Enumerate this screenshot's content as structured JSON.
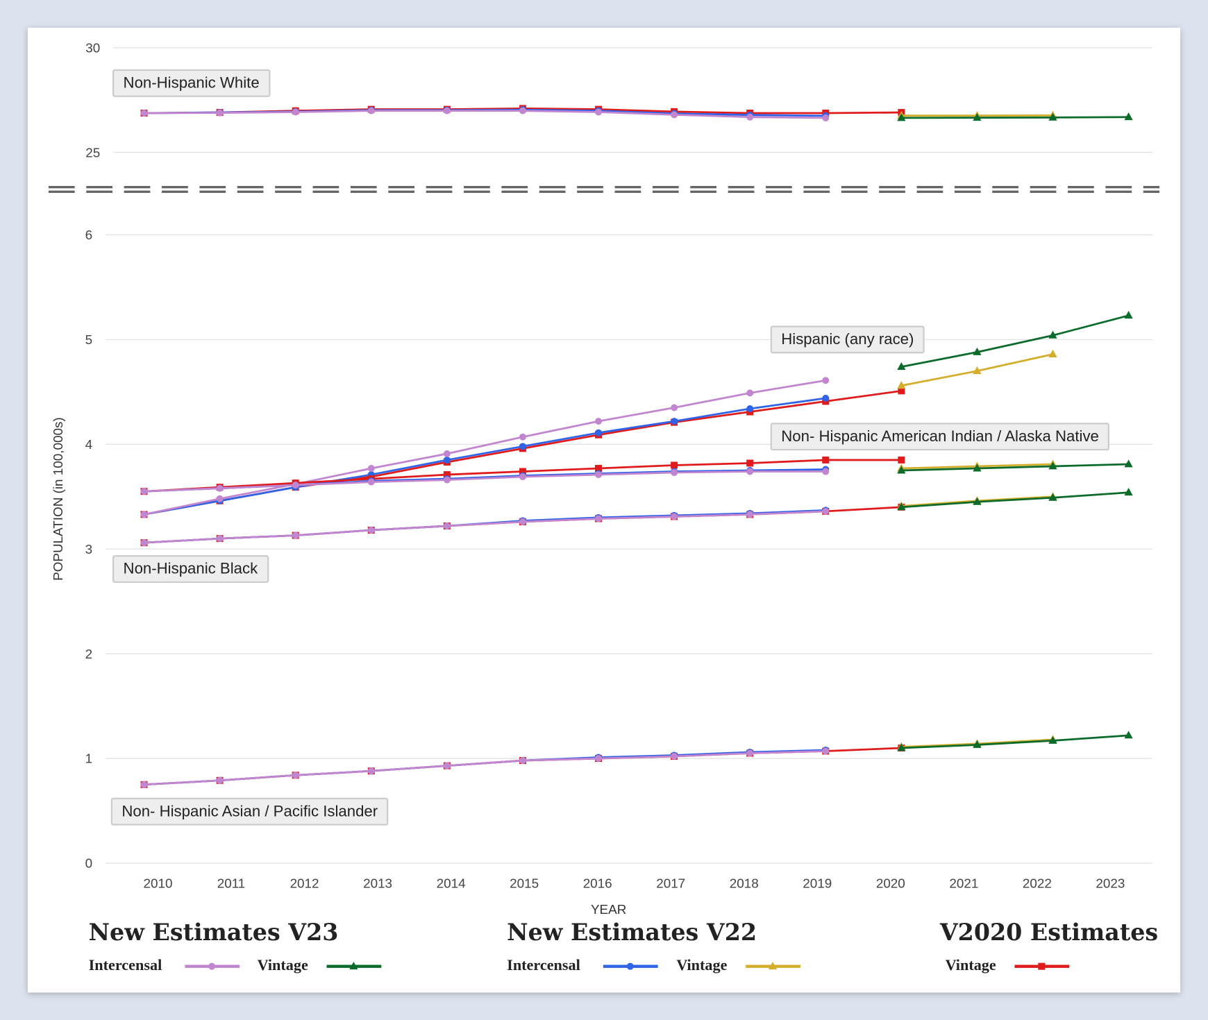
{
  "chart_data": {
    "type": "line",
    "xlabel": "YEAR",
    "ylabel": "POPULATION (in 100,000s)",
    "x_ticks": [
      "2010",
      "2011",
      "2012",
      "2013",
      "2014",
      "2015",
      "2016",
      "2017",
      "2018",
      "2019",
      "2020",
      "2021",
      "2022",
      "2023"
    ],
    "y_ticks_lower": [
      "0",
      "1",
      "2",
      "3",
      "4",
      "5",
      "6"
    ],
    "y_ticks_upper": [
      "25",
      "30"
    ],
    "ylim_lower": [
      0,
      6
    ],
    "ylim_upper": [
      25,
      30
    ],
    "axis_break": true,
    "grid": "horizontal",
    "legend_placement": "bottom",
    "styles": {
      "v23_intercensal": {
        "color": "#c186cf",
        "marker": "circle"
      },
      "v23_vintage": {
        "color": "#0a6b2a",
        "marker": "triangle"
      },
      "v22_intercensal": {
        "color": "#2f63e8",
        "marker": "circle"
      },
      "v22_vintage": {
        "color": "#d4ae2a",
        "marker": "triangle"
      },
      "v2020_vintage": {
        "color": "#e01b1b",
        "marker": "square"
      }
    },
    "groups": [
      {
        "label": "Non-Hispanic White",
        "panel": "upper",
        "series": [
          {
            "key": "v2020_vintage",
            "x": [
              2010,
              2011,
              2012,
              2013,
              2014,
              2015,
              2016,
              2017,
              2018,
              2019,
              2020
            ],
            "y": [
              26.88,
              26.91,
              26.99,
              27.06,
              27.06,
              27.1,
              27.06,
              26.95,
              26.88,
              26.88,
              26.91
            ]
          },
          {
            "key": "v22_intercensal",
            "x": [
              2010,
              2011,
              2012,
              2013,
              2014,
              2015,
              2016,
              2017,
              2018,
              2019
            ],
            "y": [
              26.88,
              26.91,
              26.95,
              27.02,
              27.02,
              27.04,
              26.99,
              26.86,
              26.79,
              26.75
            ]
          },
          {
            "key": "v23_intercensal",
            "x": [
              2010,
              2011,
              2012,
              2013,
              2014,
              2015,
              2016,
              2017,
              2018,
              2019
            ],
            "y": [
              26.88,
              26.89,
              26.93,
              26.99,
              26.99,
              26.99,
              26.93,
              26.8,
              26.69,
              26.65
            ]
          },
          {
            "key": "v22_vintage",
            "x": [
              2020,
              2021,
              2022
            ],
            "y": [
              26.76,
              26.76,
              26.77
            ]
          },
          {
            "key": "v23_vintage",
            "x": [
              2020,
              2021,
              2022,
              2023
            ],
            "y": [
              26.65,
              26.66,
              26.67,
              26.69
            ]
          }
        ]
      },
      {
        "label": "Hispanic (any race)",
        "panel": "lower",
        "series": [
          {
            "key": "v2020_vintage",
            "x": [
              2010,
              2011,
              2012,
              2013,
              2014,
              2015,
              2016,
              2017,
              2018,
              2019,
              2020
            ],
            "y": [
              3.33,
              3.46,
              3.59,
              3.69,
              3.83,
              3.96,
              4.09,
              4.21,
              4.31,
              4.41,
              4.51
            ]
          },
          {
            "key": "v22_intercensal",
            "x": [
              2010,
              2011,
              2012,
              2013,
              2014,
              2015,
              2016,
              2017,
              2018,
              2019
            ],
            "y": [
              3.33,
              3.46,
              3.59,
              3.71,
              3.85,
              3.98,
              4.11,
              4.22,
              4.34,
              4.44
            ]
          },
          {
            "key": "v23_intercensal",
            "x": [
              2010,
              2011,
              2012,
              2013,
              2014,
              2015,
              2016,
              2017,
              2018,
              2019
            ],
            "y": [
              3.33,
              3.48,
              3.62,
              3.77,
              3.91,
              4.07,
              4.22,
              4.35,
              4.49,
              4.61
            ]
          },
          {
            "key": "v22_vintage",
            "x": [
              2020,
              2021,
              2022
            ],
            "y": [
              4.56,
              4.7,
              4.86
            ]
          },
          {
            "key": "v23_vintage",
            "x": [
              2020,
              2021,
              2022,
              2023
            ],
            "y": [
              4.74,
              4.88,
              5.04,
              5.23
            ]
          }
        ]
      },
      {
        "label": "Non- Hispanic American Indian / Alaska Native",
        "panel": "lower",
        "series": [
          {
            "key": "v2020_vintage",
            "x": [
              2010,
              2011,
              2012,
              2013,
              2014,
              2015,
              2016,
              2017,
              2018,
              2019,
              2020
            ],
            "y": [
              3.55,
              3.59,
              3.63,
              3.67,
              3.71,
              3.74,
              3.77,
              3.8,
              3.82,
              3.85,
              3.85
            ]
          },
          {
            "key": "v22_intercensal",
            "x": [
              2010,
              2011,
              2012,
              2013,
              2014,
              2015,
              2016,
              2017,
              2018,
              2019
            ],
            "y": [
              3.55,
              3.58,
              3.61,
              3.65,
              3.67,
              3.7,
              3.72,
              3.74,
              3.75,
              3.76
            ]
          },
          {
            "key": "v23_intercensal",
            "x": [
              2010,
              2011,
              2012,
              2013,
              2014,
              2015,
              2016,
              2017,
              2018,
              2019
            ],
            "y": [
              3.55,
              3.58,
              3.61,
              3.64,
              3.66,
              3.69,
              3.71,
              3.73,
              3.74,
              3.74
            ]
          },
          {
            "key": "v22_vintage",
            "x": [
              2020,
              2021,
              2022
            ],
            "y": [
              3.77,
              3.79,
              3.81
            ]
          },
          {
            "key": "v23_vintage",
            "x": [
              2020,
              2021,
              2022,
              2023
            ],
            "y": [
              3.75,
              3.77,
              3.79,
              3.81
            ]
          }
        ]
      },
      {
        "label": "Non-Hispanic Black",
        "panel": "lower",
        "series": [
          {
            "key": "v2020_vintage",
            "x": [
              2010,
              2011,
              2012,
              2013,
              2014,
              2015,
              2016,
              2017,
              2018,
              2019,
              2020
            ],
            "y": [
              3.06,
              3.1,
              3.13,
              3.18,
              3.22,
              3.26,
              3.29,
              3.31,
              3.33,
              3.36,
              3.4
            ]
          },
          {
            "key": "v22_intercensal",
            "x": [
              2010,
              2011,
              2012,
              2013,
              2014,
              2015,
              2016,
              2017,
              2018,
              2019
            ],
            "y": [
              3.06,
              3.1,
              3.13,
              3.18,
              3.22,
              3.27,
              3.3,
              3.32,
              3.34,
              3.37
            ]
          },
          {
            "key": "v23_intercensal",
            "x": [
              2010,
              2011,
              2012,
              2013,
              2014,
              2015,
              2016,
              2017,
              2018,
              2019
            ],
            "y": [
              3.06,
              3.1,
              3.13,
              3.18,
              3.22,
              3.26,
              3.29,
              3.31,
              3.33,
              3.36
            ]
          },
          {
            "key": "v22_vintage",
            "x": [
              2020,
              2021,
              2022
            ],
            "y": [
              3.41,
              3.46,
              3.5
            ]
          },
          {
            "key": "v23_vintage",
            "x": [
              2020,
              2021,
              2022,
              2023
            ],
            "y": [
              3.4,
              3.45,
              3.49,
              3.54
            ]
          }
        ]
      },
      {
        "label": "Non- Hispanic Asian / Pacific Islander",
        "panel": "lower",
        "series": [
          {
            "key": "v2020_vintage",
            "x": [
              2010,
              2011,
              2012,
              2013,
              2014,
              2015,
              2016,
              2017,
              2018,
              2019,
              2020
            ],
            "y": [
              0.75,
              0.79,
              0.84,
              0.88,
              0.93,
              0.98,
              1.0,
              1.02,
              1.05,
              1.07,
              1.1
            ]
          },
          {
            "key": "v22_intercensal",
            "x": [
              2010,
              2011,
              2012,
              2013,
              2014,
              2015,
              2016,
              2017,
              2018,
              2019
            ],
            "y": [
              0.75,
              0.79,
              0.84,
              0.88,
              0.93,
              0.98,
              1.01,
              1.03,
              1.06,
              1.08
            ]
          },
          {
            "key": "v23_intercensal",
            "x": [
              2010,
              2011,
              2012,
              2013,
              2014,
              2015,
              2016,
              2017,
              2018,
              2019
            ],
            "y": [
              0.75,
              0.79,
              0.84,
              0.88,
              0.93,
              0.98,
              1.0,
              1.02,
              1.05,
              1.07
            ]
          },
          {
            "key": "v22_vintage",
            "x": [
              2020,
              2021,
              2022
            ],
            "y": [
              1.11,
              1.14,
              1.18
            ]
          },
          {
            "key": "v23_vintage",
            "x": [
              2020,
              2021,
              2022,
              2023
            ],
            "y": [
              1.1,
              1.13,
              1.17,
              1.22
            ]
          }
        ]
      }
    ],
    "legend": [
      {
        "title": "New Estimates V23",
        "items": [
          {
            "label": "Intercensal",
            "key": "v23_intercensal"
          },
          {
            "label": "Vintage",
            "key": "v23_vintage"
          }
        ]
      },
      {
        "title": "New Estimates V22",
        "items": [
          {
            "label": "Intercensal",
            "key": "v22_intercensal"
          },
          {
            "label": "Vintage",
            "key": "v22_vintage"
          }
        ]
      },
      {
        "title": "V2020 Estimates",
        "items": [
          {
            "label": "Vintage",
            "key": "v2020_vintage"
          }
        ]
      }
    ]
  }
}
